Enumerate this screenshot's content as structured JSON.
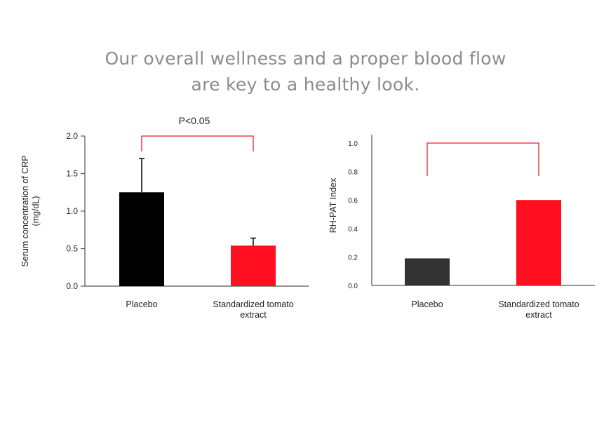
{
  "headline": {
    "line1": "Our overall wellness and a proper blood flow",
    "line2": "are key to a healthy look."
  },
  "chart_data": [
    {
      "type": "bar",
      "categories": [
        "Placebo",
        [
          "Standardized tomato",
          "extract"
        ]
      ],
      "values": [
        1.25,
        0.54
      ],
      "error_bars": [
        0.45,
        0.1
      ],
      "colors": [
        "#000000",
        "#ff0f1f"
      ],
      "ylabel": [
        "Serum concentration of CRP",
        "(mg/dL)"
      ],
      "ylim": [
        0,
        2.0
      ],
      "yticks": [
        "0.0",
        "0.5",
        "1.0",
        "1.5",
        "2.0"
      ],
      "ytick_values": [
        0,
        0.5,
        1.0,
        1.5,
        2.0
      ],
      "significance_label": "P˂0.05",
      "significance_color": "#e8202a",
      "grid": false
    },
    {
      "type": "bar",
      "categories": [
        "Placebo",
        [
          "Standardized tomato",
          "extract"
        ]
      ],
      "values": [
        0.19,
        0.6
      ],
      "colors": [
        "#333333",
        "#ff0f1f"
      ],
      "ylabel": "RH-PAT Index",
      "ylim": [
        0,
        1.0
      ],
      "yticks": [
        "0.0",
        "0.2",
        "0.4",
        "0.6",
        "0.8",
        "1.0"
      ],
      "ytick_values": [
        0,
        0.2,
        0.4,
        0.6,
        0.8,
        1.0
      ],
      "significance_color": "#e8202a",
      "grid": false
    }
  ]
}
